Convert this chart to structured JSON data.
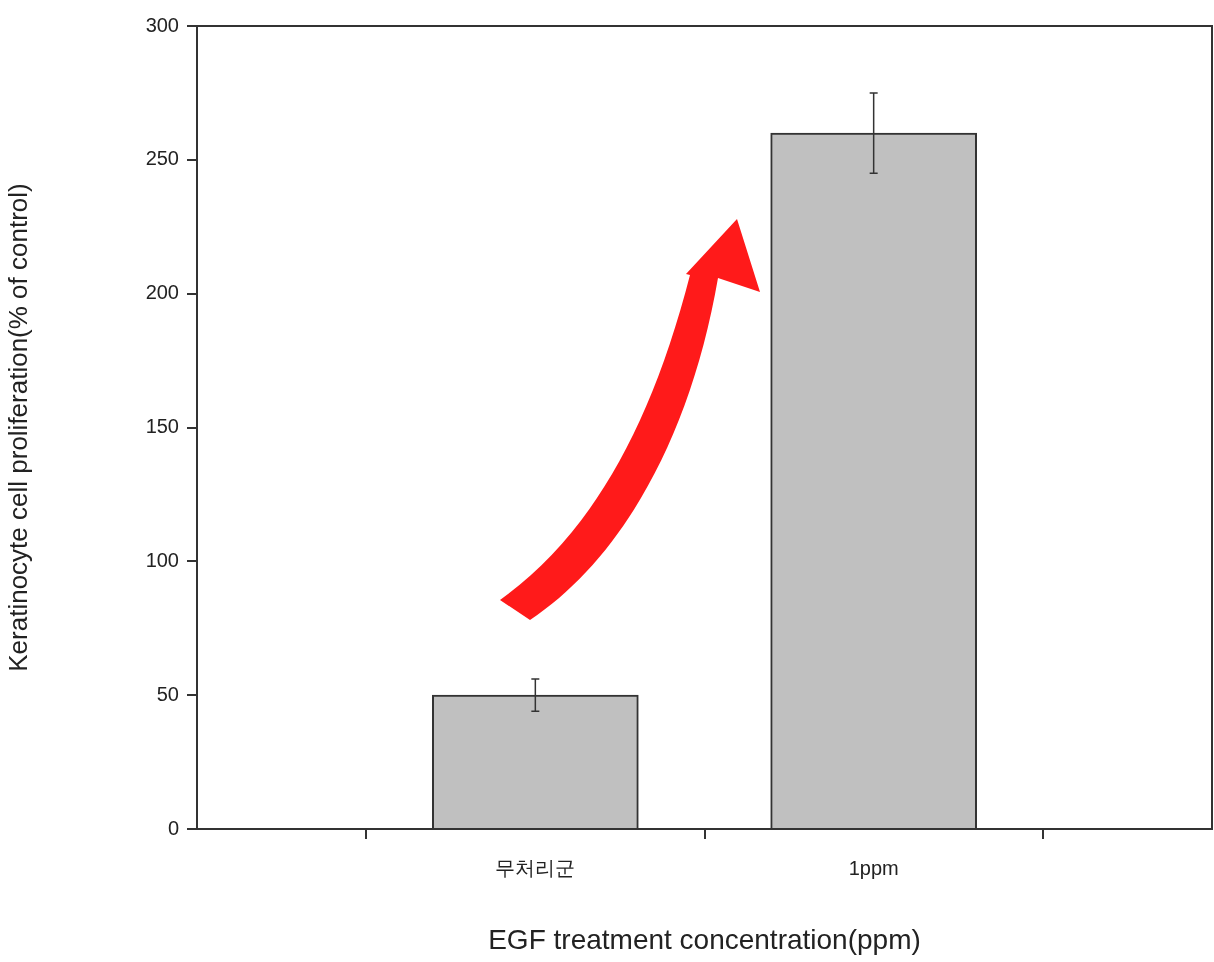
{
  "chart_data": {
    "type": "bar",
    "xlabel": "EGF treatment concentration(ppm)",
    "ylabel": "Keratinocyte cell proliferation(% of control)",
    "categories": [
      "무처리군",
      "1ppm"
    ],
    "values": [
      50,
      260
    ],
    "errors": [
      6,
      15
    ],
    "color": "#c0c0c0",
    "ylim": [
      0,
      300
    ],
    "yticks": [
      0,
      50,
      100,
      150,
      200,
      250,
      300
    ]
  }
}
